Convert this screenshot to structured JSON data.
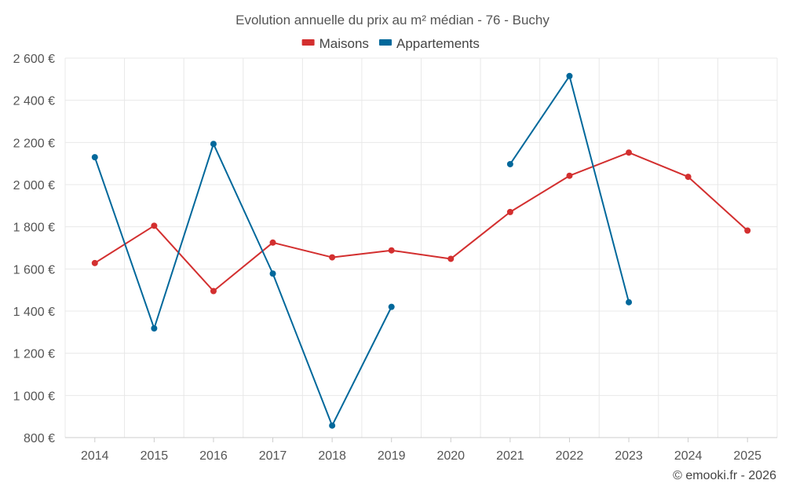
{
  "chart_data": {
    "type": "line",
    "title": "Evolution annuelle du prix au m² médian - 76 - Buchy",
    "categories": [
      "2014",
      "2015",
      "2016",
      "2017",
      "2018",
      "2019",
      "2020",
      "2021",
      "2022",
      "2023",
      "2024",
      "2025"
    ],
    "series": [
      {
        "name": "Maisons",
        "color": "#d32f2f",
        "values": [
          1628,
          1805,
          1495,
          1725,
          1655,
          1688,
          1648,
          1870,
          2042,
          2152,
          2037,
          1782
        ]
      },
      {
        "name": "Appartements",
        "color": "#01689b",
        "values": [
          2130,
          1318,
          2193,
          1578,
          857,
          1420,
          null,
          2097,
          2515,
          1442,
          null,
          null
        ]
      }
    ],
    "ylim": [
      800,
      2600
    ],
    "yticks": [
      800,
      1000,
      1200,
      1400,
      1600,
      1800,
      2000,
      2200,
      2400,
      2600
    ],
    "ytick_labels": [
      "800 €",
      "1 000 €",
      "1 200 €",
      "1 400 €",
      "1 600 €",
      "1 800 €",
      "2 000 €",
      "2 200 €",
      "2 400 €",
      "2 600 €"
    ],
    "xlabel": "",
    "ylabel": "",
    "legend_position": "top-center",
    "grid": true
  },
  "credit": "© emooki.fr - 2026"
}
